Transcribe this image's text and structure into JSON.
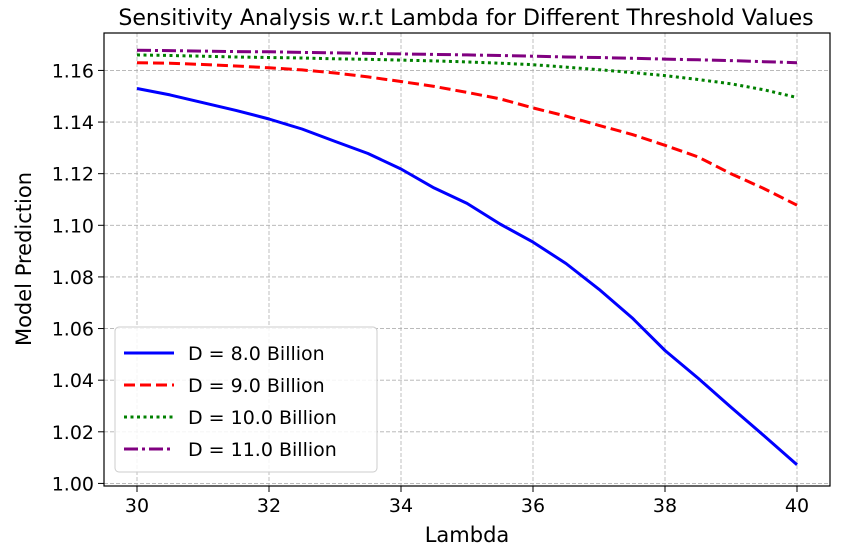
{
  "chart_data": {
    "type": "line",
    "title": "Sensitivity Analysis w.r.t Lambda for Different Threshold Values",
    "xlabel": "Lambda",
    "ylabel": "Model Prediction",
    "xlim": [
      29.5,
      40.5
    ],
    "ylim": [
      0.999,
      1.1745
    ],
    "xticks": [
      30,
      32,
      34,
      36,
      38,
      40
    ],
    "yticks": [
      1.0,
      1.02,
      1.04,
      1.06,
      1.08,
      1.1,
      1.12,
      1.14,
      1.16
    ],
    "xtick_labels": [
      "30",
      "32",
      "34",
      "36",
      "38",
      "40"
    ],
    "ytick_labels": [
      "1.00",
      "1.02",
      "1.04",
      "1.06",
      "1.08",
      "1.10",
      "1.12",
      "1.14",
      "1.16"
    ],
    "grid": true,
    "legend_position": "lower-left",
    "x": [
      30,
      30.5,
      31,
      31.5,
      32,
      32.5,
      33,
      33.5,
      34,
      34.5,
      35,
      35.5,
      36,
      36.5,
      37,
      37.5,
      38,
      38.5,
      39,
      39.5,
      40
    ],
    "series": [
      {
        "name": "D = 8.0 Billion",
        "color": "#0000ff",
        "dash": "solid",
        "values": [
          1.153,
          1.1505,
          1.1475,
          1.1445,
          1.1412,
          1.1373,
          1.1325,
          1.1278,
          1.1218,
          1.1145,
          1.1085,
          1.1005,
          1.0935,
          1.0852,
          1.0752,
          1.0642,
          1.0515,
          1.0408,
          1.0295,
          1.0185,
          1.0072
        ]
      },
      {
        "name": "D = 9.0 Billion",
        "color": "#ff0000",
        "dash": "dashed",
        "values": [
          1.163,
          1.1628,
          1.1623,
          1.1617,
          1.161,
          1.1602,
          1.159,
          1.1575,
          1.1557,
          1.1538,
          1.1515,
          1.149,
          1.1455,
          1.1423,
          1.1387,
          1.1352,
          1.131,
          1.1265,
          1.12,
          1.1142,
          1.1078
        ]
      },
      {
        "name": "D = 10.0 Billion",
        "color": "#008000",
        "dash": "dotted",
        "values": [
          1.166,
          1.1658,
          1.1655,
          1.1652,
          1.165,
          1.1648,
          1.1645,
          1.1643,
          1.164,
          1.1637,
          1.1633,
          1.1628,
          1.1622,
          1.1613,
          1.1603,
          1.1592,
          1.158,
          1.1565,
          1.1548,
          1.1525,
          1.1495
        ]
      },
      {
        "name": "D = 11.0 Billion",
        "color": "#800080",
        "dash": "dashdot",
        "values": [
          1.1678,
          1.1677,
          1.1675,
          1.1673,
          1.1672,
          1.167,
          1.1668,
          1.1666,
          1.1664,
          1.1662,
          1.166,
          1.1658,
          1.1655,
          1.1652,
          1.165,
          1.1647,
          1.1644,
          1.1641,
          1.1638,
          1.1634,
          1.163
        ]
      }
    ]
  }
}
